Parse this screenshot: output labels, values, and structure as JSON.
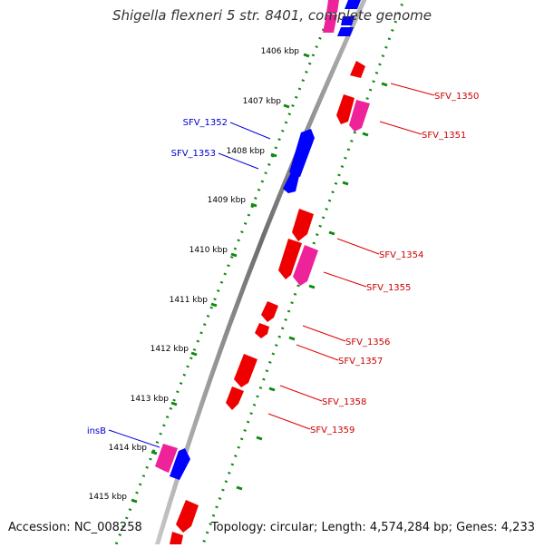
{
  "header": {
    "title": "Shigella flexneri 5 str. 8401, complete genome"
  },
  "footer": {
    "accession": "Accession: NC_008258",
    "summary": "Topology: circular; Length: 4,574,284 bp; Genes: 4,233"
  },
  "scale": {
    "ticks": [
      {
        "kbp": 1406,
        "label": "1406 kbp"
      },
      {
        "kbp": 1407,
        "label": "1407 kbp"
      },
      {
        "kbp": 1408,
        "label": "1408 kbp"
      },
      {
        "kbp": 1409,
        "label": "1409 kbp"
      },
      {
        "kbp": 1410,
        "label": "1410 kbp"
      },
      {
        "kbp": 1411,
        "label": "1411 kbp"
      },
      {
        "kbp": 1412,
        "label": "1412 kbp"
      },
      {
        "kbp": 1413,
        "label": "1413 kbp"
      },
      {
        "kbp": 1414,
        "label": "1414 kbp"
      },
      {
        "kbp": 1415,
        "label": "1415 kbp"
      }
    ]
  },
  "gene_labels": [
    {
      "name": "SFV_1350",
      "strand": "plus"
    },
    {
      "name": "SFV_1351",
      "strand": "plus"
    },
    {
      "name": "SFV_1352",
      "strand": "minus"
    },
    {
      "name": "SFV_1353",
      "strand": "minus"
    },
    {
      "name": "SFV_1354",
      "strand": "plus"
    },
    {
      "name": "SFV_1355",
      "strand": "plus"
    },
    {
      "name": "SFV_1356",
      "strand": "plus"
    },
    {
      "name": "SFV_1357",
      "strand": "plus"
    },
    {
      "name": "SFV_1358",
      "strand": "plus"
    },
    {
      "name": "SFV_1359",
      "strand": "plus"
    },
    {
      "name": "insB",
      "strand": "minus"
    }
  ],
  "colors": {
    "plus_cds": "#ff0000",
    "minus_cds": "#0000ff",
    "rna": "#ee2299",
    "backbone": "#8a8a8a",
    "dots": "#118811",
    "plus_label": "#cc0000",
    "minus_label": "#0000cc"
  }
}
